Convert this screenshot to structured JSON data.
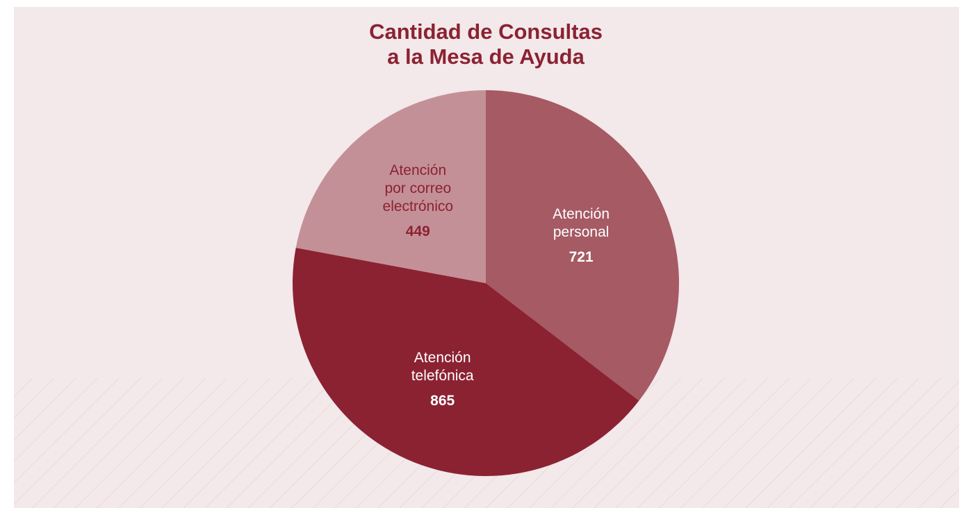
{
  "chart_data": {
    "type": "pie",
    "title": [
      "Cantidad de Consultas",
      "a la Mesa de Ayuda"
    ],
    "categories": [
      [
        "Atención",
        "personal"
      ],
      [
        "Atención",
        "telefónica"
      ],
      [
        "Atención",
        "por correo",
        "electrónico"
      ]
    ],
    "values": [
      721,
      865,
      449
    ],
    "colors": [
      "#a55a64",
      "#8b2232",
      "#c49097"
    ],
    "label_colors": [
      "#ffffff",
      "#ffffff",
      "#8b2232"
    ]
  }
}
